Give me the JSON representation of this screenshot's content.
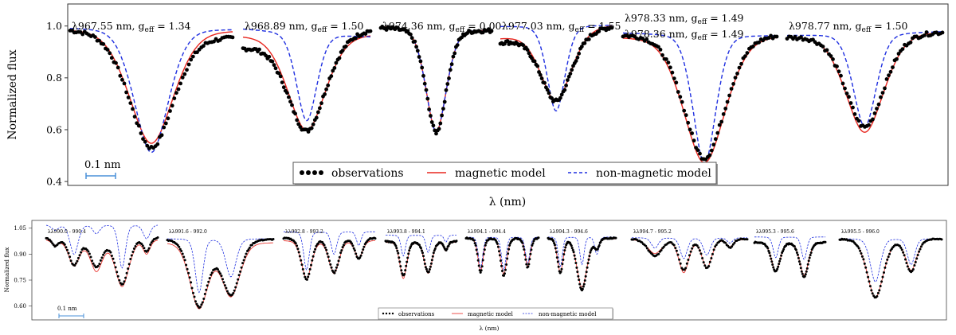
{
  "colors": {
    "observations": "#000000",
    "magnetic": "#e8261f",
    "nonmagnetic": "#1f2fe0",
    "scalebar": "#4a90d9",
    "frame": "#333333"
  },
  "chart_data": [
    {
      "type": "line",
      "ylabel": "Normalized flux",
      "xlabel": "λ (nm)",
      "ylim": [
        0.385,
        1.085
      ],
      "yticks": [
        "0.4",
        "0.6",
        "0.8",
        "1.0"
      ],
      "yticks_values": [
        0.4,
        0.6,
        0.8,
        1.0
      ],
      "scale_bar": "0.1 nm",
      "legend": {
        "placement": "bottom-center",
        "entries": [
          "observations",
          "magnetic model",
          "non-magnetic model"
        ]
      },
      "panels": [
        {
          "label_wl": "λ967.55 nm,",
          "geff": "1.34",
          "lines": [
            {
              "mu": 0.5,
              "obs": 0.445,
              "mag": 0.44,
              "nonmag": 0.48,
              "w_mag": 0.22,
              "w_non": 0.17
            }
          ],
          "cont": {
            "obs": [
              0.99,
              0.96
            ],
            "mag": [
              0.99,
              0.985
            ],
            "nonmag": [
              0.995,
              0.99
            ]
          }
        },
        {
          "label_wl": "λ968.89 nm,",
          "geff": "1.50",
          "lines": [
            {
              "mu": 0.5,
              "obs": 0.36,
              "mag": 0.37,
              "nonmag": 0.34,
              "w_mag": 0.24,
              "w_non": 0.13
            }
          ],
          "cont": {
            "obs": [
              0.92,
              0.99
            ],
            "mag": [
              0.965,
              0.97
            ],
            "nonmag": [
              0.99,
              0.96
            ]
          }
        },
        {
          "label_wl": "λ974.36 nm,",
          "geff": "0.00",
          "lines": [
            {
              "mu": 0.5,
              "obs": 0.4,
              "mag": 0.4,
              "nonmag": 0.4,
              "w_mag": 0.15,
              "w_non": 0.15
            }
          ],
          "cont": {
            "obs": [
              0.995,
              0.985
            ],
            "mag": [
              1.0,
              0.985
            ],
            "nonmag": [
              1.0,
              0.985
            ]
          }
        },
        {
          "label_wl": "λ977.03 nm,",
          "geff": "1.55",
          "lines": [
            {
              "mu": 0.5,
              "obs": 0.26,
              "mag": 0.27,
              "nonmag": 0.33,
              "w_mag": 0.22,
              "w_non": 0.13
            }
          ],
          "cont": {
            "obs": [
              0.94,
              1.0
            ],
            "mag": [
              0.955,
              1.005
            ],
            "nonmag": [
              1.0,
              1.005
            ]
          }
        },
        {
          "label_wl": "λ978.33 nm,",
          "geff": "1.49",
          "label2_wl": "λ978.36 nm,",
          "geff2": "1.49",
          "lines": [
            {
              "mu": 0.53,
              "obs": 0.48,
              "mag": 0.49,
              "nonmag": 0.5,
              "w_mag": 0.22,
              "w_non": 0.12
            }
          ],
          "cont": {
            "obs": [
              0.97,
              0.97
            ],
            "mag": [
              0.96,
              0.965
            ],
            "nonmag": [
              0.975,
              0.965
            ]
          }
        },
        {
          "label_wl": "λ978.77 nm,",
          "geff": "1.50",
          "lines": [
            {
              "mu": 0.5,
              "obs": 0.36,
              "mag": 0.38,
              "nonmag": 0.36,
              "w_mag": 0.2,
              "w_non": 0.12
            }
          ],
          "cont": {
            "obs": [
              0.96,
              0.98
            ],
            "mag": [
              0.96,
              0.98
            ],
            "nonmag": [
              0.965,
              0.98
            ]
          }
        }
      ]
    },
    {
      "type": "line",
      "ylabel": "Normalized flux",
      "xlabel": "λ (nm)",
      "ylim": [
        0.52,
        1.095
      ],
      "yticks": [
        "0.60",
        "0.75",
        "0.90",
        "1.05"
      ],
      "yticks_values": [
        0.6,
        0.75,
        0.9,
        1.05
      ],
      "scale_bar": "0.1 nm",
      "legend": {
        "placement": "bottom-center",
        "entries": [
          "observations",
          "magnetic model",
          "non-magnetic model"
        ]
      },
      "panels": [
        {
          "label": "λλ990.0 - 990.4",
          "cont": {
            "obs": 1.0,
            "mag": 0.985,
            "nonmag": 1.07
          },
          "lines": [
            {
              "mu": 0.08,
              "obs": 0.05,
              "mag": 0.03,
              "nonmag": 0.03,
              "w_mag": 0.05,
              "w_non": 0.05
            },
            {
              "mu": 0.25,
              "obs": 0.16,
              "mag": 0.15,
              "nonmag": 0.17,
              "w_mag": 0.08,
              "w_non": 0.06
            },
            {
              "mu": 0.45,
              "obs": 0.17,
              "mag": 0.18,
              "nonmag": 0.05,
              "w_mag": 0.09,
              "w_non": 0.05
            },
            {
              "mu": 0.68,
              "obs": 0.27,
              "mag": 0.27,
              "nonmag": 0.25,
              "w_mag": 0.1,
              "w_non": 0.05
            },
            {
              "mu": 0.9,
              "obs": 0.08,
              "mag": 0.08,
              "nonmag": 0.08,
              "w_mag": 0.05,
              "w_non": 0.05
            }
          ]
        },
        {
          "label": "λλ991.6 - 992.0",
          "cont": {
            "obs": 0.99,
            "mag": 0.97,
            "nonmag": 0.99
          },
          "lines": [
            {
              "mu": 0.3,
              "obs": 0.39,
              "mag": 0.38,
              "nonmag": 0.31,
              "w_mag": 0.14,
              "w_non": 0.06
            },
            {
              "mu": 0.6,
              "obs": 0.32,
              "mag": 0.31,
              "nonmag": 0.22,
              "w_mag": 0.14,
              "w_non": 0.08
            }
          ]
        },
        {
          "label": "λλ992.8 - 993.2",
          "cont": {
            "obs": 0.995,
            "mag": 0.98,
            "nonmag": 1.03
          },
          "lines": [
            {
              "mu": 0.25,
              "obs": 0.24,
              "mag": 0.22,
              "nonmag": 0.22,
              "w_mag": 0.09,
              "w_non": 0.05
            },
            {
              "mu": 0.55,
              "obs": 0.2,
              "mag": 0.19,
              "nonmag": 0.13,
              "w_mag": 0.09,
              "w_non": 0.05
            },
            {
              "mu": 0.82,
              "obs": 0.12,
              "mag": 0.1,
              "nonmag": 0.08,
              "w_mag": 0.07,
              "w_non": 0.04
            }
          ]
        },
        {
          "label": "λλ993.8 - 994.1",
          "cont": {
            "obs": 0.975,
            "mag": 0.97,
            "nonmag": 1.01
          },
          "lines": [
            {
              "mu": 0.25,
              "obs": 0.2,
              "mag": 0.21,
              "nonmag": 0.12,
              "w_mag": 0.08,
              "w_non": 0.05
            },
            {
              "mu": 0.6,
              "obs": 0.18,
              "mag": 0.18,
              "nonmag": 0.1,
              "w_mag": 0.09,
              "w_non": 0.05
            },
            {
              "mu": 0.85,
              "obs": 0.05,
              "mag": 0.05,
              "nonmag": 0.04,
              "w_mag": 0.05,
              "w_non": 0.04
            }
          ]
        },
        {
          "label": "λλ994.1 - 994.4",
          "cont": {
            "obs": 0.995,
            "mag": 0.995,
            "nonmag": 1.0
          },
          "lines": [
            {
              "mu": 0.2,
              "obs": 0.2,
              "mag": 0.19,
              "nonmag": 0.18,
              "w_mag": 0.06,
              "w_non": 0.05
            },
            {
              "mu": 0.52,
              "obs": 0.22,
              "mag": 0.21,
              "nonmag": 0.19,
              "w_mag": 0.07,
              "w_non": 0.05
            },
            {
              "mu": 0.85,
              "obs": 0.17,
              "mag": 0.16,
              "nonmag": 0.15,
              "w_mag": 0.06,
              "w_non": 0.05
            }
          ]
        },
        {
          "label": "λλ994.3 - 994.6",
          "cont": {
            "obs": 0.995,
            "mag": 0.99,
            "nonmag": 1.0
          },
          "lines": [
            {
              "mu": 0.18,
              "obs": 0.2,
              "mag": 0.19,
              "nonmag": 0.17,
              "w_mag": 0.07,
              "w_non": 0.05
            },
            {
              "mu": 0.5,
              "obs": 0.3,
              "mag": 0.28,
              "nonmag": 0.16,
              "w_mag": 0.12,
              "w_non": 0.05
            },
            {
              "mu": 0.72,
              "obs": 0.06,
              "mag": 0.05,
              "nonmag": 0.1,
              "w_mag": 0.06,
              "w_non": 0.05
            }
          ]
        },
        {
          "label": "λλ994.7 - 995.2",
          "cont": {
            "obs": 0.99,
            "mag": 0.985,
            "nonmag": 0.995
          },
          "lines": [
            {
              "mu": 0.2,
              "obs": 0.1,
              "mag": 0.08,
              "nonmag": 0.06,
              "w_mag": 0.1,
              "w_non": 0.05
            },
            {
              "mu": 0.45,
              "obs": 0.18,
              "mag": 0.19,
              "nonmag": 0.12,
              "w_mag": 0.07,
              "w_non": 0.05
            },
            {
              "mu": 0.65,
              "obs": 0.17,
              "mag": 0.16,
              "nonmag": 0.1,
              "w_mag": 0.07,
              "w_non": 0.05
            },
            {
              "mu": 0.85,
              "obs": 0.05,
              "mag": 0.04,
              "nonmag": 0.03,
              "w_mag": 0.05,
              "w_non": 0.04
            }
          ]
        },
        {
          "label": "λλ995.3 - 995.6",
          "cont": {
            "obs": 0.97,
            "mag": 0.97,
            "nonmag": 1.0
          },
          "lines": [
            {
              "mu": 0.3,
              "obs": 0.17,
              "mag": 0.17,
              "nonmag": 0.12,
              "w_mag": 0.1,
              "w_non": 0.06
            },
            {
              "mu": 0.7,
              "obs": 0.2,
              "mag": 0.19,
              "nonmag": 0.13,
              "w_mag": 0.1,
              "w_non": 0.06
            }
          ]
        },
        {
          "label": "λλ995.5 - 996.0",
          "cont": {
            "obs": 0.99,
            "mag": 0.99,
            "nonmag": 0.99
          },
          "lines": [
            {
              "mu": 0.35,
              "obs": 0.34,
              "mag": 0.34,
              "nonmag": 0.25,
              "w_mag": 0.13,
              "w_non": 0.08
            },
            {
              "mu": 0.7,
              "obs": 0.19,
              "mag": 0.18,
              "nonmag": 0.15,
              "w_mag": 0.09,
              "w_non": 0.06
            }
          ]
        }
      ]
    }
  ]
}
